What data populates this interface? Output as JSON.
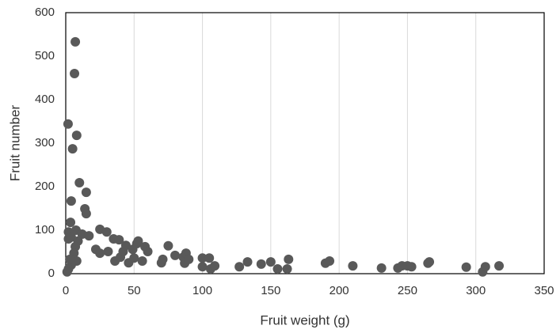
{
  "chart_data": {
    "type": "scatter",
    "x_label": "Fruit weight (g)",
    "y_label": "Fruit number",
    "xlim": [
      0,
      350
    ],
    "ylim": [
      0,
      600
    ],
    "xticks": [
      0,
      50,
      100,
      150,
      200,
      250,
      300,
      350
    ],
    "yticks": [
      0,
      100,
      200,
      300,
      400,
      500,
      600
    ],
    "grid": true,
    "color": "#595959",
    "x": [
      7,
      6.4,
      1.7,
      8,
      5,
      10,
      15,
      4,
      14,
      15,
      3.5,
      7.5,
      2,
      2,
      4,
      12,
      17,
      9,
      7,
      6,
      8,
      4,
      2,
      1,
      3,
      22,
      25,
      30,
      25,
      31,
      35,
      39,
      36,
      40,
      42,
      44,
      46,
      49,
      52,
      53,
      50,
      56,
      58,
      60,
      70,
      71,
      75,
      80,
      86,
      88,
      87,
      90,
      100,
      105,
      100,
      106,
      109,
      127,
      133,
      143,
      150,
      155,
      162,
      163,
      190,
      193,
      210,
      231,
      243,
      246,
      250,
      253,
      265,
      266,
      293,
      305,
      307,
      317
    ],
    "values": [
      533,
      460,
      344,
      318,
      287,
      209,
      187,
      167,
      149,
      138,
      118,
      100,
      96,
      80,
      84,
      91,
      87,
      75,
      62,
      47,
      29,
      20,
      11,
      4,
      33,
      56,
      102,
      96,
      47,
      51,
      80,
      78,
      29,
      38,
      51,
      65,
      25,
      56,
      69,
      75,
      36,
      29,
      62,
      51,
      25,
      33,
      64,
      42,
      38,
      47,
      24,
      33,
      36,
      36,
      16,
      11,
      18,
      16,
      27,
      22,
      27,
      11,
      11,
      33,
      24,
      29,
      18,
      13,
      13,
      18,
      18,
      16,
      24,
      27,
      15,
      4,
      16,
      18
    ]
  }
}
